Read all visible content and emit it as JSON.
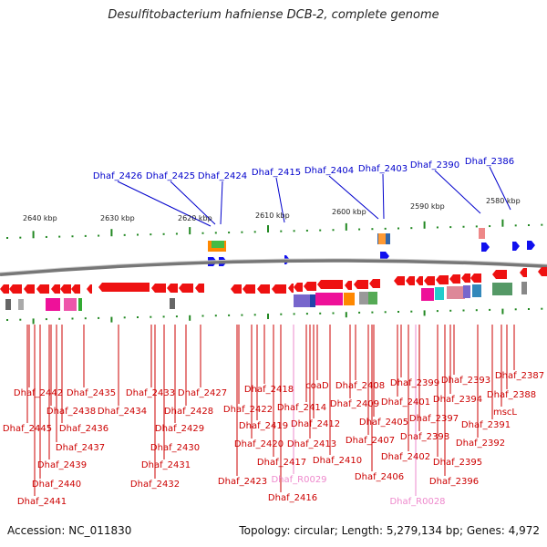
{
  "title": "Desulfitobacterium hafniense DCB-2, complete genome",
  "footer": {
    "accession": "Accession: NC_011830",
    "summary": "Topology: circular; Length: 5,279,134 bp; Genes: 4,972"
  },
  "scale_labels": [
    "2640 kbp",
    "2630 kbp",
    "2620 kbp",
    "2610 kbp",
    "2600 kbp",
    "2590 kbp",
    "2580 kbp"
  ],
  "top_genes": [
    "Dhaf_2426",
    "Dhaf_2425",
    "Dhaf_2424",
    "Dhaf_2415",
    "Dhaf_2404",
    "Dhaf_2403",
    "Dhaf_2390",
    "Dhaf_2386"
  ],
  "bottom_genes": [
    "Dhaf_2442",
    "Dhaf_2445",
    "Dhaf_2438",
    "Dhaf_2435",
    "Dhaf_2436",
    "Dhaf_2437",
    "Dhaf_2439",
    "Dhaf_2440",
    "Dhaf_2441",
    "Dhaf_2434",
    "Dhaf_2433",
    "Dhaf_2427",
    "Dhaf_2428",
    "Dhaf_2429",
    "Dhaf_2430",
    "Dhaf_2431",
    "Dhaf_2432",
    "Dhaf_2422",
    "Dhaf_2418",
    "Dhaf_2419",
    "Dhaf_2420",
    "Dhaf_2423",
    "Dhaf_2417",
    "Dhaf_2416",
    "coaD",
    "Dhaf_2414",
    "Dhaf_2412",
    "Dhaf_2413",
    "Dhaf_R0029",
    "Dhaf_2410",
    "Dhaf_2408",
    "Dhaf_2409",
    "Dhaf_2405",
    "Dhaf_2407",
    "Dhaf_2406",
    "Dhaf_2399",
    "Dhaf_2401",
    "Dhaf_2397",
    "Dhaf_2398",
    "Dhaf_2402",
    "Dhaf_R0028",
    "Dhaf_2393",
    "Dhaf_2394",
    "Dhaf_2395",
    "Dhaf_2396",
    "Dhaf_2387",
    "Dhaf_2388",
    "mscL",
    "Dhaf_2391",
    "Dhaf_2392"
  ],
  "colors": {
    "top_label": "#0000cc",
    "bottom_label": "#cc0000",
    "rna_label": "#ee88cc",
    "forward_gene": "#1010ee",
    "reverse_gene": "#ee1111",
    "tick": "#228822",
    "backbone": "#888888"
  }
}
